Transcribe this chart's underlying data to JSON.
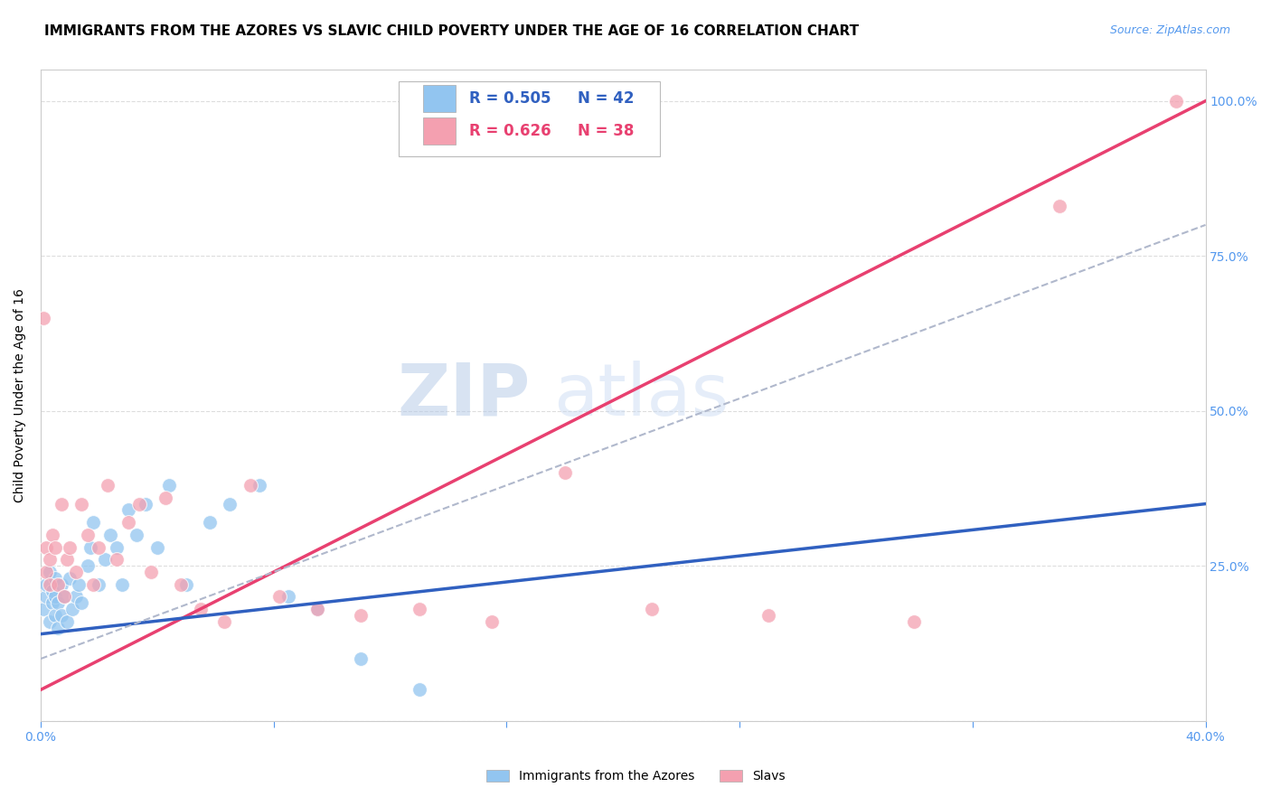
{
  "title": "IMMIGRANTS FROM THE AZORES VS SLAVIC CHILD POVERTY UNDER THE AGE OF 16 CORRELATION CHART",
  "source": "Source: ZipAtlas.com",
  "ylabel": "Child Poverty Under the Age of 16",
  "xlim": [
    0.0,
    0.4
  ],
  "ylim": [
    0.0,
    1.05
  ],
  "xticks": [
    0.0,
    0.08,
    0.16,
    0.24,
    0.32,
    0.4
  ],
  "xticklabels": [
    "0.0%",
    "",
    "",
    "",
    "",
    "40.0%"
  ],
  "yticks": [
    0.0,
    0.25,
    0.5,
    0.75,
    1.0
  ],
  "yticklabels": [
    "",
    "25.0%",
    "50.0%",
    "75.0%",
    "100.0%"
  ],
  "watermark_zip": "ZIP",
  "watermark_atlas": "atlas",
  "azores_R": 0.505,
  "azores_N": 42,
  "slavic_R": 0.626,
  "slavic_N": 38,
  "azores_color": "#92C5F0",
  "slavic_color": "#F4A0B0",
  "azores_line_color": "#3060C0",
  "slavic_line_color": "#E84070",
  "dash_color": "#B0B8CC",
  "azores_x": [
    0.001,
    0.002,
    0.002,
    0.003,
    0.003,
    0.004,
    0.004,
    0.005,
    0.005,
    0.005,
    0.006,
    0.006,
    0.007,
    0.007,
    0.008,
    0.009,
    0.01,
    0.011,
    0.012,
    0.013,
    0.014,
    0.016,
    0.017,
    0.018,
    0.02,
    0.022,
    0.024,
    0.026,
    0.028,
    0.03,
    0.033,
    0.036,
    0.04,
    0.044,
    0.05,
    0.058,
    0.065,
    0.075,
    0.085,
    0.095,
    0.11,
    0.13
  ],
  "azores_y": [
    0.18,
    0.2,
    0.22,
    0.16,
    0.24,
    0.19,
    0.21,
    0.17,
    0.2,
    0.23,
    0.15,
    0.19,
    0.17,
    0.22,
    0.2,
    0.16,
    0.23,
    0.18,
    0.2,
    0.22,
    0.19,
    0.25,
    0.28,
    0.32,
    0.22,
    0.26,
    0.3,
    0.28,
    0.22,
    0.34,
    0.3,
    0.35,
    0.28,
    0.38,
    0.22,
    0.32,
    0.35,
    0.38,
    0.2,
    0.18,
    0.1,
    0.05
  ],
  "slavic_x": [
    0.001,
    0.002,
    0.002,
    0.003,
    0.003,
    0.004,
    0.005,
    0.006,
    0.007,
    0.008,
    0.009,
    0.01,
    0.012,
    0.014,
    0.016,
    0.018,
    0.02,
    0.023,
    0.026,
    0.03,
    0.034,
    0.038,
    0.043,
    0.048,
    0.055,
    0.063,
    0.072,
    0.082,
    0.095,
    0.11,
    0.13,
    0.155,
    0.18,
    0.21,
    0.25,
    0.3,
    0.35,
    0.39
  ],
  "slavic_y": [
    0.65,
    0.24,
    0.28,
    0.22,
    0.26,
    0.3,
    0.28,
    0.22,
    0.35,
    0.2,
    0.26,
    0.28,
    0.24,
    0.35,
    0.3,
    0.22,
    0.28,
    0.38,
    0.26,
    0.32,
    0.35,
    0.24,
    0.36,
    0.22,
    0.18,
    0.16,
    0.38,
    0.2,
    0.18,
    0.17,
    0.18,
    0.16,
    0.4,
    0.18,
    0.17,
    0.16,
    0.83,
    1.0
  ],
  "azores_line_x": [
    0.0,
    0.4
  ],
  "azores_line_y": [
    0.14,
    0.35
  ],
  "slavic_line_x": [
    0.0,
    0.4
  ],
  "slavic_line_y": [
    0.05,
    1.0
  ],
  "dash_line_x": [
    0.0,
    0.4
  ],
  "dash_line_y": [
    0.1,
    0.8
  ],
  "background_color": "#FFFFFF",
  "grid_color": "#DDDDDD",
  "tick_color": "#5599EE",
  "title_fontsize": 11,
  "axis_label_fontsize": 10,
  "tick_fontsize": 10,
  "legend_fontsize": 12
}
